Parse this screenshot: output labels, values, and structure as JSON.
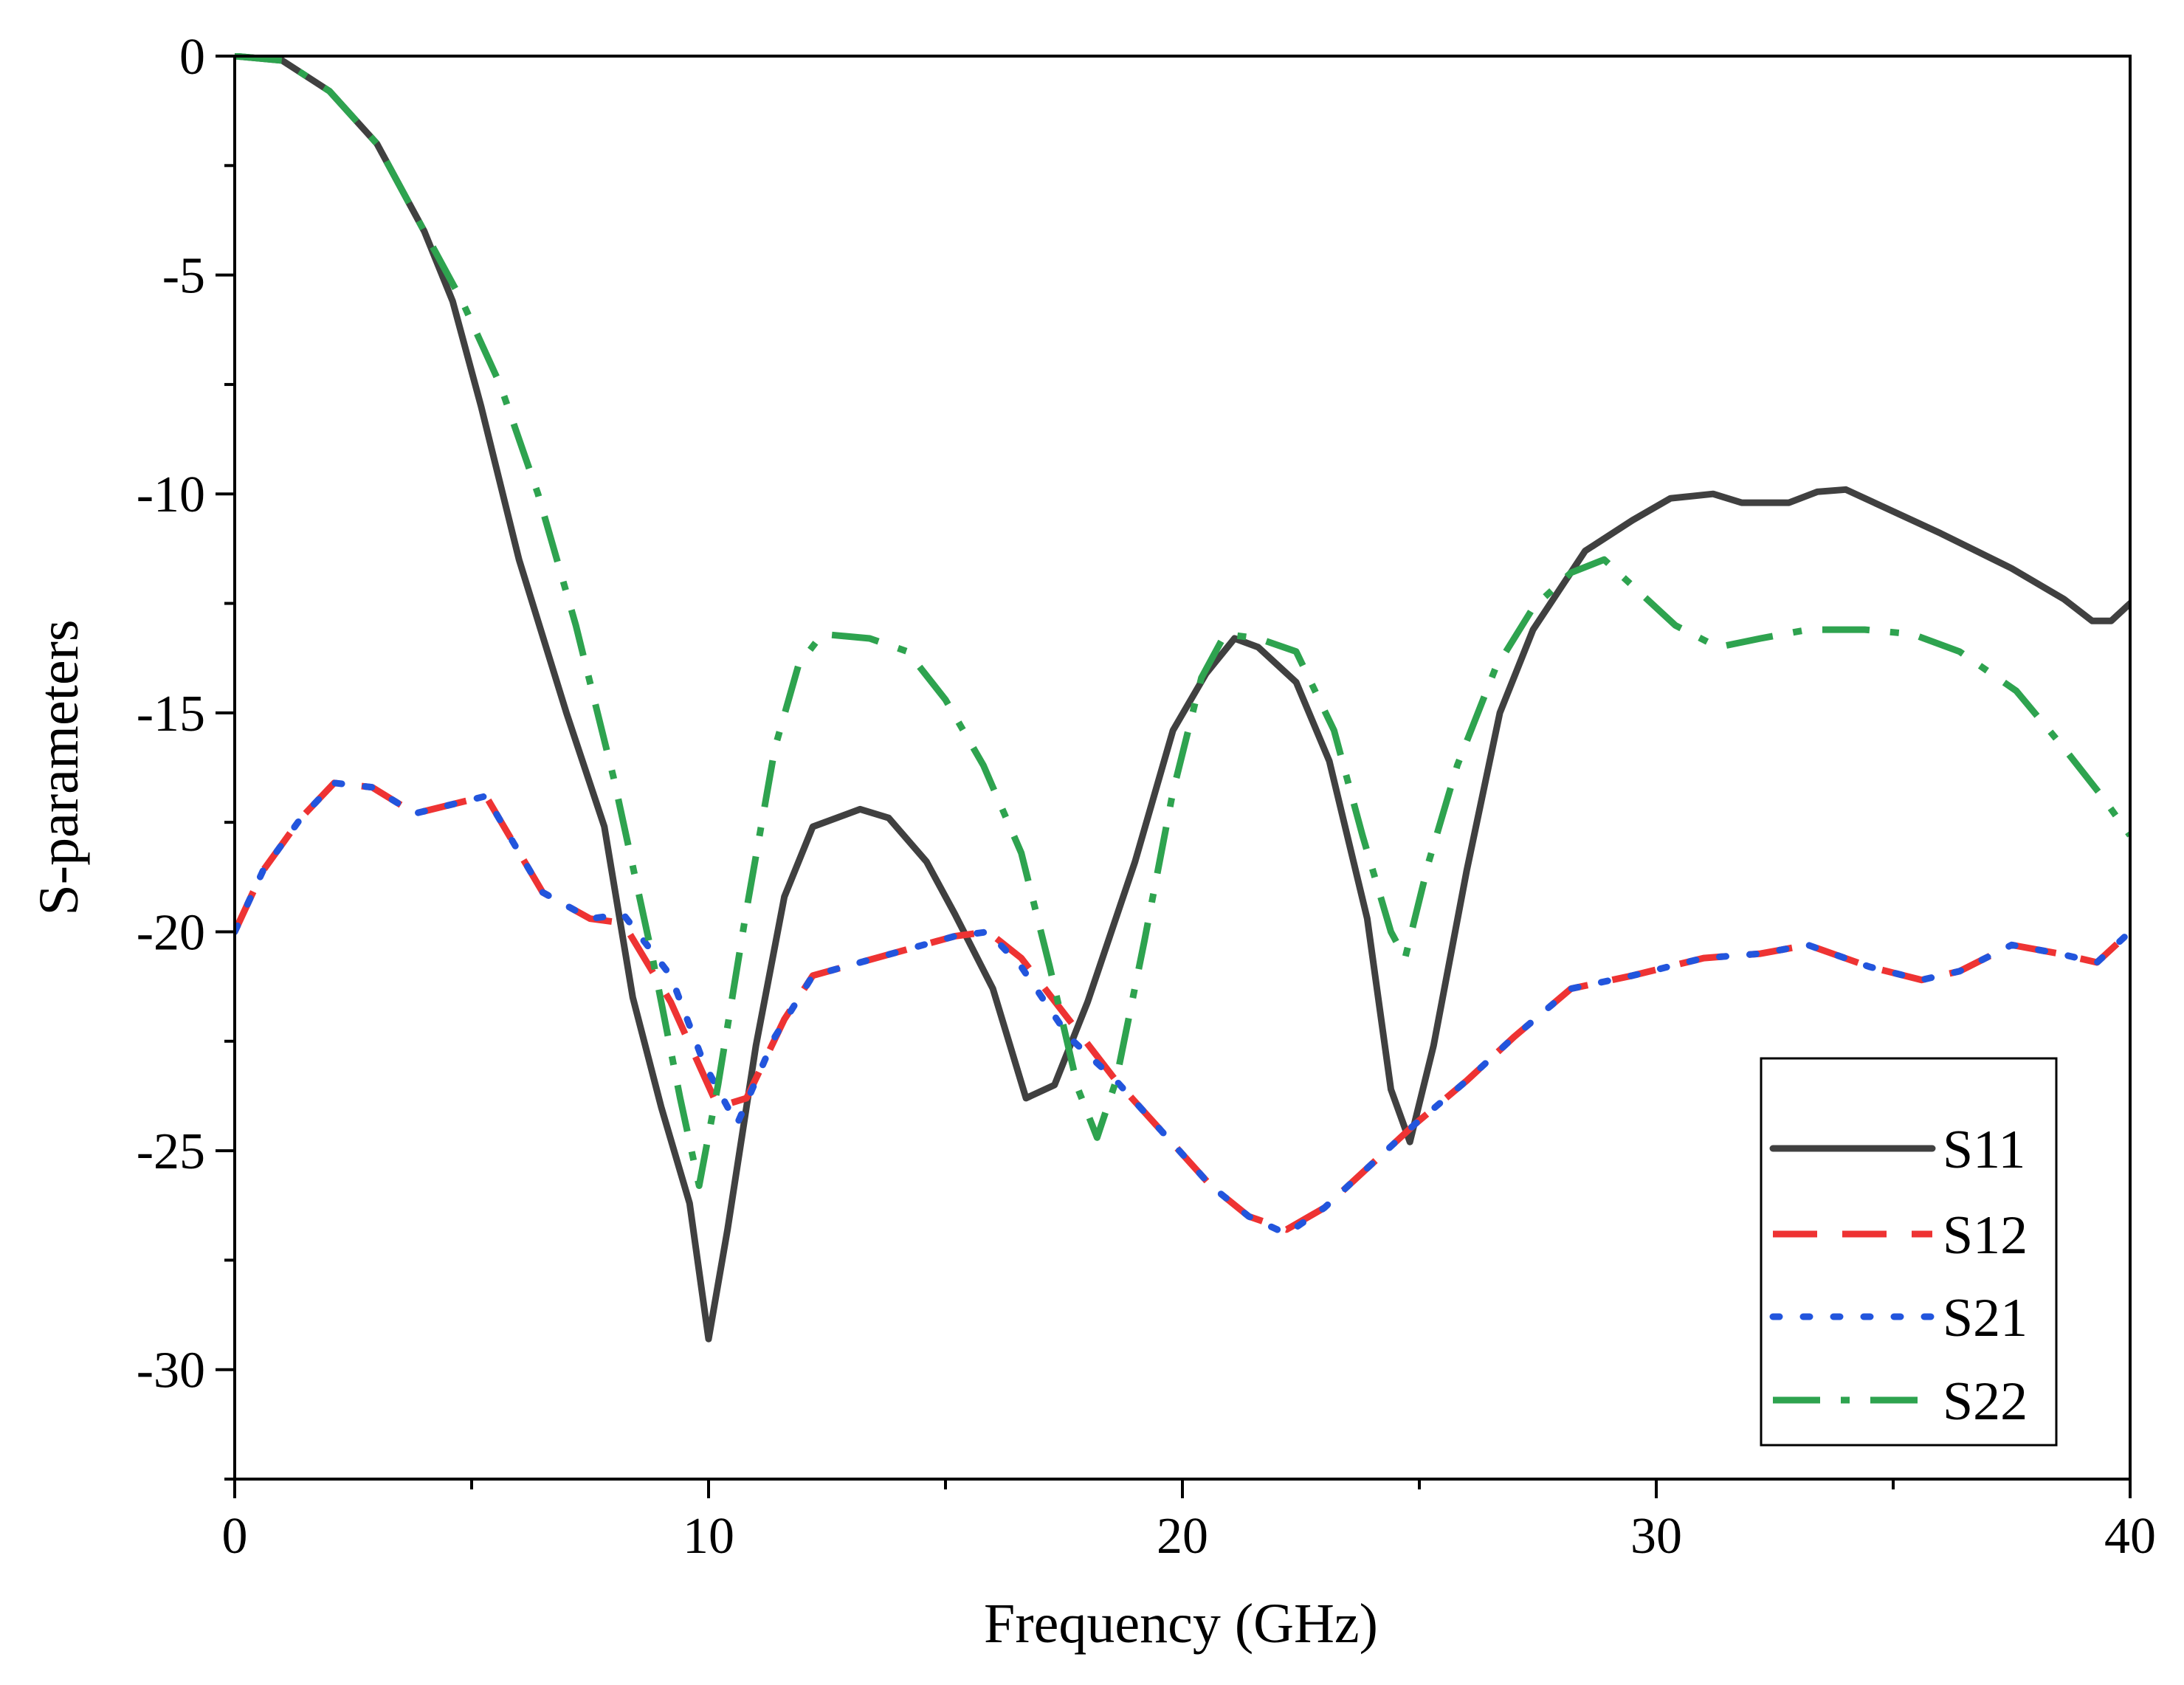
{
  "chart_data": {
    "type": "line",
    "title": "",
    "xlabel": "Frequency (GHz)",
    "ylabel": "S-parameters",
    "xlim": [
      0,
      40
    ],
    "ylim": [
      -32.5,
      0
    ],
    "xticks": [
      0,
      10,
      20,
      30,
      40
    ],
    "yticks": [
      0,
      -5,
      -10,
      -15,
      -20,
      -25,
      -30
    ],
    "grid": false,
    "legend": "bottom-right",
    "series": [
      {
        "name": "S11",
        "color": "#404040",
        "style": "solid",
        "points": [
          [
            0,
            0
          ],
          [
            1,
            -0.1
          ],
          [
            2,
            -0.8
          ],
          [
            3,
            -2.0
          ],
          [
            4,
            -4.0
          ],
          [
            4.6,
            -5.6
          ],
          [
            5.2,
            -8.0
          ],
          [
            6,
            -11.5
          ],
          [
            7,
            -15.0
          ],
          [
            7.8,
            -17.6
          ],
          [
            8.4,
            -21.5
          ],
          [
            9,
            -24.0
          ],
          [
            9.6,
            -26.2
          ],
          [
            10,
            -29.3
          ],
          [
            10.4,
            -26.8
          ],
          [
            11,
            -22.6
          ],
          [
            11.6,
            -19.2
          ],
          [
            12.2,
            -17.6
          ],
          [
            13.2,
            -17.2
          ],
          [
            13.8,
            -17.4
          ],
          [
            14.6,
            -18.4
          ],
          [
            15.2,
            -19.6
          ],
          [
            16,
            -21.3
          ],
          [
            16.7,
            -23.8
          ],
          [
            17.3,
            -23.5
          ],
          [
            18,
            -21.6
          ],
          [
            19,
            -18.4
          ],
          [
            19.8,
            -15.4
          ],
          [
            20.5,
            -14.1
          ],
          [
            21.1,
            -13.3
          ],
          [
            21.6,
            -13.5
          ],
          [
            22.4,
            -14.3
          ],
          [
            23.1,
            -16.1
          ],
          [
            23.9,
            -19.7
          ],
          [
            24.4,
            -23.6
          ],
          [
            24.8,
            -24.8
          ],
          [
            25.3,
            -22.6
          ],
          [
            26,
            -18.6
          ],
          [
            26.7,
            -15.0
          ],
          [
            27.4,
            -13.1
          ],
          [
            28.5,
            -11.3
          ],
          [
            29.5,
            -10.6
          ],
          [
            30.3,
            -10.1
          ],
          [
            31.2,
            -10.0
          ],
          [
            31.8,
            -10.2
          ],
          [
            32.8,
            -10.2
          ],
          [
            33.4,
            -9.95
          ],
          [
            34,
            -9.9
          ],
          [
            34.6,
            -10.2
          ],
          [
            36,
            -10.9
          ],
          [
            37.5,
            -11.7
          ],
          [
            38.6,
            -12.4
          ],
          [
            39.2,
            -12.9
          ],
          [
            39.6,
            -12.9
          ],
          [
            40,
            -12.5
          ]
        ]
      },
      {
        "name": "S12",
        "color": "#ee3333",
        "style": "dashed",
        "points": [
          [
            0,
            -20.0
          ],
          [
            0.6,
            -18.6
          ],
          [
            1.4,
            -17.4
          ],
          [
            2.1,
            -16.6
          ],
          [
            2.9,
            -16.7
          ],
          [
            3.8,
            -17.3
          ],
          [
            5.3,
            -16.9
          ],
          [
            6.5,
            -19.1
          ],
          [
            7.5,
            -19.7
          ],
          [
            8.2,
            -19.8
          ],
          [
            9.2,
            -21.6
          ],
          [
            10.2,
            -24.0
          ],
          [
            10.8,
            -23.8
          ],
          [
            11.6,
            -22.0
          ],
          [
            12.2,
            -21.0
          ],
          [
            13.2,
            -20.7
          ],
          [
            14.2,
            -20.4
          ],
          [
            15.2,
            -20.1
          ],
          [
            15.9,
            -20.0
          ],
          [
            16.6,
            -20.6
          ],
          [
            17.6,
            -22.0
          ],
          [
            18.6,
            -23.4
          ],
          [
            19.6,
            -24.6
          ],
          [
            20.6,
            -25.8
          ],
          [
            21.4,
            -26.5
          ],
          [
            22.2,
            -26.8
          ],
          [
            23,
            -26.3
          ],
          [
            23.9,
            -25.4
          ],
          [
            24.9,
            -24.4
          ],
          [
            26,
            -23.4
          ],
          [
            27,
            -22.4
          ],
          [
            28.2,
            -21.3
          ],
          [
            29.5,
            -21.0
          ],
          [
            31,
            -20.6
          ],
          [
            32.2,
            -20.5
          ],
          [
            33.2,
            -20.3
          ],
          [
            34.5,
            -20.8
          ],
          [
            35.6,
            -21.1
          ],
          [
            36.4,
            -20.9
          ],
          [
            37.5,
            -20.3
          ],
          [
            38.5,
            -20.5
          ],
          [
            39.3,
            -20.7
          ],
          [
            40,
            -20.0
          ]
        ]
      },
      {
        "name": "S21",
        "color": "#2255dd",
        "style": "dotted",
        "points": [
          [
            0,
            -20.0
          ],
          [
            0.6,
            -18.6
          ],
          [
            1.4,
            -17.4
          ],
          [
            2.1,
            -16.6
          ],
          [
            2.9,
            -16.7
          ],
          [
            3.8,
            -17.3
          ],
          [
            5.3,
            -16.9
          ],
          [
            6.5,
            -19.1
          ],
          [
            7.5,
            -19.7
          ],
          [
            8.2,
            -19.6
          ],
          [
            9.2,
            -21.0
          ],
          [
            9.9,
            -23.0
          ],
          [
            10.6,
            -24.4
          ],
          [
            11.4,
            -22.4
          ],
          [
            12.2,
            -21.0
          ],
          [
            13.2,
            -20.7
          ],
          [
            14.2,
            -20.4
          ],
          [
            15.2,
            -20.1
          ],
          [
            15.9,
            -20.0
          ],
          [
            16.6,
            -20.8
          ],
          [
            17.6,
            -22.4
          ],
          [
            18.6,
            -23.4
          ],
          [
            19.6,
            -24.6
          ],
          [
            20.6,
            -25.8
          ],
          [
            21.4,
            -26.5
          ],
          [
            22.2,
            -26.9
          ],
          [
            23,
            -26.3
          ],
          [
            23.9,
            -25.4
          ],
          [
            24.9,
            -24.4
          ],
          [
            26,
            -23.4
          ],
          [
            27,
            -22.4
          ],
          [
            28.2,
            -21.3
          ],
          [
            29.5,
            -21.0
          ],
          [
            31,
            -20.6
          ],
          [
            32.2,
            -20.5
          ],
          [
            33.2,
            -20.3
          ],
          [
            34.5,
            -20.8
          ],
          [
            35.6,
            -21.1
          ],
          [
            36.4,
            -20.9
          ],
          [
            37.5,
            -20.3
          ],
          [
            38.5,
            -20.5
          ],
          [
            39.3,
            -20.7
          ],
          [
            40,
            -20.0
          ]
        ]
      },
      {
        "name": "S22",
        "color": "#2ea34f",
        "style": "dashdot",
        "points": [
          [
            0,
            0
          ],
          [
            1,
            -0.1
          ],
          [
            2,
            -0.8
          ],
          [
            3,
            -2.0
          ],
          [
            4,
            -4.0
          ],
          [
            4.8,
            -5.6
          ],
          [
            5.6,
            -7.5
          ],
          [
            6.4,
            -10.0
          ],
          [
            7.2,
            -13.0
          ],
          [
            8,
            -16.5
          ],
          [
            8.8,
            -20.5
          ],
          [
            9.4,
            -23.8
          ],
          [
            9.8,
            -25.8
          ],
          [
            10.2,
            -23.5
          ],
          [
            10.8,
            -19.5
          ],
          [
            11.4,
            -15.8
          ],
          [
            11.9,
            -13.9
          ],
          [
            12.4,
            -13.2
          ],
          [
            13.4,
            -13.3
          ],
          [
            14.2,
            -13.6
          ],
          [
            15,
            -14.7
          ],
          [
            15.8,
            -16.2
          ],
          [
            16.6,
            -18.2
          ],
          [
            17.2,
            -20.8
          ],
          [
            17.8,
            -23.6
          ],
          [
            18.2,
            -24.7
          ],
          [
            18.6,
            -23.4
          ],
          [
            19.2,
            -20.2
          ],
          [
            19.8,
            -16.8
          ],
          [
            20.4,
            -14.2
          ],
          [
            20.9,
            -13.2
          ],
          [
            21.6,
            -13.3
          ],
          [
            22.4,
            -13.6
          ],
          [
            23.2,
            -15.4
          ],
          [
            23.8,
            -17.8
          ],
          [
            24.4,
            -20.0
          ],
          [
            24.7,
            -20.6
          ],
          [
            25.2,
            -18.4
          ],
          [
            25.8,
            -16.2
          ],
          [
            26.6,
            -14.0
          ],
          [
            27.4,
            -12.6
          ],
          [
            28.2,
            -11.8
          ],
          [
            28.9,
            -11.5
          ],
          [
            29.6,
            -12.2
          ],
          [
            30.4,
            -13.0
          ],
          [
            31.3,
            -13.5
          ],
          [
            32.2,
            -13.3
          ],
          [
            33.2,
            -13.1
          ],
          [
            34.4,
            -13.1
          ],
          [
            35.4,
            -13.2
          ],
          [
            36.4,
            -13.6
          ],
          [
            37.6,
            -14.5
          ],
          [
            38.6,
            -15.8
          ],
          [
            39.4,
            -16.9
          ],
          [
            40,
            -17.8
          ]
        ]
      }
    ]
  }
}
